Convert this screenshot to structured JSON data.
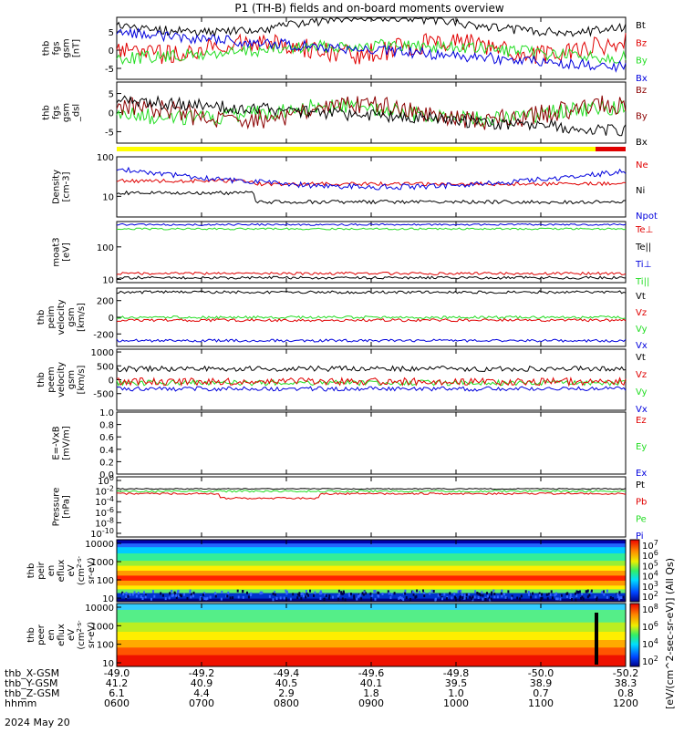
{
  "title": "P1  (TH-B) fields and on-board moments overview",
  "date_label": "2024 May 20",
  "colorbar_unit": "[eV/(cm^2-sec-sr-eV)] (All Qs)",
  "colors": {
    "black": "#000000",
    "red": "#e00000",
    "green": "#22dd22",
    "blue": "#0000dd",
    "darkred": "#8b0000",
    "yellow": "#ffff00"
  },
  "chart_data": [
    {
      "type": "line",
      "panel": "fgs",
      "ylabel": [
        "thb",
        "fgs",
        "gsm",
        "[nT]"
      ],
      "ylim": [
        -8,
        9
      ],
      "yticks": [
        "5",
        "0",
        "-5"
      ],
      "yticks_values": [
        5,
        0,
        -5
      ],
      "legend": [
        "Bt",
        "Bz",
        "By",
        "Bx"
      ],
      "legend_colors": [
        "black",
        "red",
        "green",
        "blue"
      ]
    },
    {
      "type": "line",
      "panel": "fgs_gse",
      "ylabel": [
        "thb",
        "fgs",
        "gsm",
        "_dsl"
      ],
      "ylim": [
        -8,
        8
      ],
      "yticks": [
        "5",
        "0",
        "-5"
      ],
      "yticks_values": [
        5,
        0,
        -5
      ],
      "legend": [
        "Bz",
        "By",
        "Bx"
      ],
      "legend_colors": [
        "darkred",
        "darkred",
        "black"
      ]
    },
    {
      "type": "line",
      "panel": "density",
      "ylabel": [
        "Density",
        "[cm-3]"
      ],
      "scale": "log",
      "ylim": [
        3,
        100
      ],
      "yticks": [
        "100",
        "10"
      ],
      "yticks_values": [
        100,
        10
      ],
      "legend": [
        "Ne",
        "Ni",
        "Npot"
      ],
      "legend_colors": [
        "red",
        "black",
        "blue"
      ]
    },
    {
      "type": "line",
      "panel": "temperature",
      "ylabel": [
        "moat3",
        "[eV]"
      ],
      "scale": "log",
      "ylim": [
        8,
        600
      ],
      "yticks": [
        "100",
        "10"
      ],
      "yticks_values": [
        100,
        10
      ],
      "legend": [
        "Te⊥",
        "Te||",
        "Ti⊥",
        "Ti||"
      ],
      "legend_colors": [
        "red",
        "black",
        "blue",
        "green"
      ]
    },
    {
      "type": "line",
      "panel": "ion_velocity",
      "ylabel": [
        "thb",
        "peim",
        "velocity",
        "gsm",
        "[km/s]"
      ],
      "ylim": [
        -350,
        350
      ],
      "yticks": [
        "200",
        "0",
        "-200"
      ],
      "yticks_values": [
        200,
        0,
        -200
      ],
      "legend": [
        "Vt",
        "Vz",
        "Vy",
        "Vx"
      ],
      "legend_colors": [
        "black",
        "red",
        "green",
        "blue"
      ]
    },
    {
      "type": "line",
      "panel": "electron_velocity",
      "ylabel": [
        "thb",
        "peem",
        "velocity",
        "gsm",
        "[km/s]"
      ],
      "ylim": [
        -1100,
        1100
      ],
      "yticks": [
        "1000",
        "500",
        "0",
        "-500"
      ],
      "yticks_values": [
        1000,
        500,
        0,
        -500
      ],
      "legend": [
        "Vt",
        "Vz",
        "Vy",
        "Vx"
      ],
      "legend_colors": [
        "black",
        "red",
        "green",
        "blue"
      ]
    },
    {
      "type": "line",
      "panel": "efield",
      "ylabel": [
        "E=-VxB",
        "[mV/m]"
      ],
      "ylim": [
        0,
        1
      ],
      "yticks": [
        "1.0",
        "0.8",
        "0.6",
        "0.4",
        "0.2",
        "0.0"
      ],
      "yticks_values": [
        1.0,
        0.8,
        0.6,
        0.4,
        0.2,
        0.0
      ],
      "legend": [
        "Ez",
        "Ey",
        "Ex"
      ],
      "legend_colors": [
        "red",
        "green",
        "blue"
      ]
    },
    {
      "type": "line",
      "panel": "pressure",
      "ylabel": [
        "Pressure",
        "[nPa]"
      ],
      "scale": "log",
      "yticks": [
        "10^0",
        "10^-2",
        "10^-4",
        "10^-6",
        "10^-8",
        "10^-10"
      ],
      "legend": [
        "Pt",
        "Pb",
        "Pe",
        "Pi"
      ],
      "legend_colors": [
        "black",
        "red",
        "green",
        "blue"
      ]
    },
    {
      "type": "heatmap",
      "panel": "ion_spectrogram",
      "ylabel": [
        "thb",
        "peir",
        "en",
        "eflux",
        "eV",
        "(cm^2-s-",
        "sr-eV)"
      ],
      "scale": "log",
      "yticks": [
        "10000",
        "1000",
        "100",
        "10"
      ],
      "yticks_values": [
        10000,
        1000,
        100,
        10
      ],
      "colorbar_ticks": [
        "10^7",
        "10^6",
        "10^5",
        "10^4",
        "10^3",
        "10^2"
      ]
    },
    {
      "type": "heatmap",
      "panel": "electron_spectrogram",
      "ylabel": [
        "thb",
        "peer",
        "en",
        "eflux",
        "eV",
        "(cm^2-s-",
        "sr-eV)"
      ],
      "scale": "log",
      "yticks": [
        "10000",
        "1000",
        "100",
        "10"
      ],
      "yticks_values": [
        10000,
        1000,
        100,
        10
      ],
      "colorbar_ticks": [
        "10^8",
        "10^6",
        "10^4",
        "10^2"
      ]
    }
  ],
  "x_axis": {
    "rows": [
      {
        "label": "thb_X-GSM",
        "values": [
          "-49.0",
          "-49.2",
          "-49.4",
          "-49.6",
          "-49.8",
          "-50.0",
          "-50.2"
        ]
      },
      {
        "label": "thb_Y-GSM",
        "values": [
          "41.2",
          "40.9",
          "40.5",
          "40.1",
          "39.5",
          "38.9",
          "38.3"
        ]
      },
      {
        "label": "thb_Z-GSM",
        "values": [
          "6.1",
          "4.4",
          "2.9",
          "1.8",
          "1.0",
          "0.7",
          "0.8"
        ]
      },
      {
        "label": "hhmm",
        "values": [
          "0600",
          "0700",
          "0800",
          "0900",
          "1000",
          "1100",
          "1200"
        ]
      }
    ]
  }
}
